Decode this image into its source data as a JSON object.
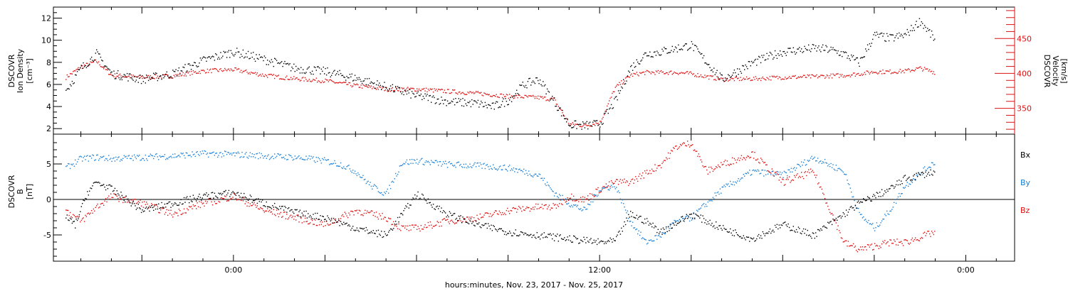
{
  "chart_data": [
    {
      "type": "scatter",
      "panel": "top",
      "ylabel_lines": [
        "DSCOVR",
        "Ion Density",
        "[cm⁻³]"
      ],
      "ylabel_right_lines": [
        "DSCOVR",
        "Velocity",
        "[km/s]"
      ],
      "ylim": [
        1.5,
        13
      ],
      "yticks": [
        "2",
        "4",
        "6",
        "8",
        "10",
        "12"
      ],
      "ylim_right": [
        313,
        495
      ],
      "yticks_right": [
        "350",
        "400",
        "450"
      ],
      "colors": {
        "density": "#000000",
        "velocity": "#dd1111"
      },
      "series": [
        {
          "key": "density",
          "x": [
            -5.5,
            -5,
            -4.5,
            -4,
            -3,
            -2,
            -1,
            0,
            1,
            2,
            3,
            4,
            5,
            6,
            7,
            8,
            8.5,
            9,
            9.5,
            10,
            10.5,
            11,
            11.5,
            12,
            12.5,
            13,
            13.5,
            14,
            14.5,
            15,
            16,
            17,
            18,
            19,
            19.5,
            20,
            20.5,
            21,
            21.5,
            22,
            22.5,
            23
          ],
          "y": [
            5.5,
            7.5,
            8.8,
            7.0,
            6.5,
            7.0,
            8.2,
            9.0,
            8.3,
            7.5,
            7.2,
            6.6,
            5.8,
            5.0,
            4.5,
            4.3,
            4.0,
            4.6,
            6.0,
            6.5,
            4.5,
            2.4,
            2.3,
            2.5,
            4.5,
            7.5,
            8.8,
            9.0,
            9.3,
            9.6,
            6.5,
            8.0,
            9.0,
            9.3,
            9.2,
            8.8,
            8.0,
            10.5,
            10.2,
            10.5,
            11.8,
            10.0
          ]
        },
        {
          "key": "velocity",
          "x": [
            -5.5,
            -5,
            -4.5,
            -4,
            -3,
            -2,
            -1,
            0,
            1,
            2,
            3,
            4,
            5,
            6,
            7,
            8,
            8.5,
            9,
            9.5,
            10,
            10.5,
            11,
            11.5,
            12,
            12.5,
            13,
            13.5,
            14,
            14.5,
            15,
            16,
            17,
            18,
            19,
            19.5,
            20,
            20.5,
            21,
            21.5,
            22,
            22.5,
            23
          ],
          "y": [
            395,
            410,
            418,
            398,
            395,
            397,
            404,
            406,
            398,
            393,
            390,
            383,
            378,
            378,
            375,
            372,
            370,
            368,
            367,
            366,
            363,
            328,
            326,
            330,
            380,
            398,
            402,
            402,
            402,
            400,
            392,
            393,
            395,
            396,
            397,
            398,
            400,
            403,
            403,
            404,
            408,
            402
          ]
        }
      ]
    },
    {
      "type": "scatter",
      "panel": "bottom",
      "ylabel_lines": [
        "DSCOVR",
        "B",
        "[nT]"
      ],
      "ylim": [
        -8.7,
        9.2
      ],
      "yticks": [
        "-5",
        "0",
        "5"
      ],
      "legend": [
        "Bx",
        "By",
        "Bz"
      ],
      "colors": {
        "Bx": "#000000",
        "By": "#1a7fd4",
        "Bz": "#dd1111"
      },
      "series": [
        {
          "key": "Bx",
          "x": [
            -5.5,
            -5.2,
            -4.8,
            -4.5,
            -4,
            -3,
            -2,
            -1,
            0,
            1,
            2,
            3,
            4,
            5,
            6,
            7,
            8,
            9,
            10,
            11,
            12,
            12.5,
            13,
            13.5,
            14,
            15,
            16,
            17,
            18,
            19,
            20,
            20.5,
            21,
            21.5,
            22,
            23
          ],
          "y": [
            -2.5,
            -3.5,
            1.0,
            2.5,
            1.5,
            -1.5,
            -0.5,
            0.5,
            1.0,
            -0.5,
            -1.8,
            -2.5,
            -4.0,
            -5.0,
            0.8,
            -2.0,
            -3.5,
            -4.5,
            -5.0,
            -5.5,
            -6.0,
            -5.8,
            -2.0,
            -3.0,
            -4.5,
            -2.0,
            -4.0,
            -5.5,
            -3.5,
            -5.0,
            -2.0,
            -0.5,
            0.5,
            1.5,
            3.0,
            4.0
          ]
        },
        {
          "key": "By",
          "x": [
            -5.5,
            -5,
            -4.5,
            -4,
            -3,
            -2,
            -1,
            0,
            1,
            2,
            3,
            3.5,
            4,
            4.5,
            5,
            5.5,
            6,
            7,
            8,
            9,
            10,
            10.5,
            11,
            11.5,
            12,
            12.5,
            13,
            13.5,
            14,
            14.5,
            15,
            16,
            17,
            18,
            19,
            20,
            20.5,
            21,
            21.5,
            22,
            23
          ],
          "y": [
            4.5,
            5.8,
            6.0,
            5.8,
            6.0,
            6.2,
            6.5,
            6.4,
            6.2,
            6.0,
            5.5,
            5.0,
            4.0,
            2.0,
            0.8,
            5.2,
            5.5,
            5.0,
            4.8,
            4.5,
            3.5,
            1.0,
            -0.5,
            -1.5,
            1.5,
            2.0,
            -3.0,
            -6.0,
            -5.0,
            -3.0,
            -2.5,
            1.5,
            4.0,
            3.5,
            6.0,
            4.0,
            -2.0,
            -4.0,
            -1.5,
            2.0,
            5.5
          ]
        },
        {
          "key": "Bz",
          "x": [
            -5.5,
            -5,
            -4.5,
            -4,
            -3,
            -2,
            -1,
            0,
            1,
            2,
            3,
            4,
            5,
            5.5,
            6,
            7,
            8,
            9,
            10,
            10.5,
            11,
            11.5,
            12,
            12.5,
            13,
            14,
            14.5,
            15,
            15.5,
            16,
            17,
            18,
            19,
            20,
            20.5,
            21,
            21.5,
            22,
            23
          ],
          "y": [
            -1.5,
            -3.0,
            -1.0,
            0.5,
            -0.5,
            -2.0,
            -0.5,
            0.5,
            -1.5,
            -2.5,
            -3.5,
            -1.5,
            -2.5,
            -4.0,
            -4.0,
            -3.0,
            -2.5,
            -1.5,
            -1.0,
            -1.0,
            0.5,
            0.0,
            1.5,
            2.5,
            2.5,
            5.0,
            7.5,
            8.0,
            4.0,
            5.0,
            6.5,
            2.5,
            4.0,
            -6.0,
            -7.0,
            -6.5,
            -6.0,
            -6.0,
            -4.5
          ]
        }
      ]
    }
  ],
  "xaxis": {
    "xlim": [
      -5.9,
      25.6
    ],
    "ticks": [
      {
        "value": 0,
        "label": "0:00"
      },
      {
        "value": 12,
        "label": "12:00"
      },
      {
        "value": 24,
        "label": "0:00"
      }
    ],
    "xlabel": "hours:minutes, Nov. 23, 2017 - Nov. 25, 2017"
  }
}
